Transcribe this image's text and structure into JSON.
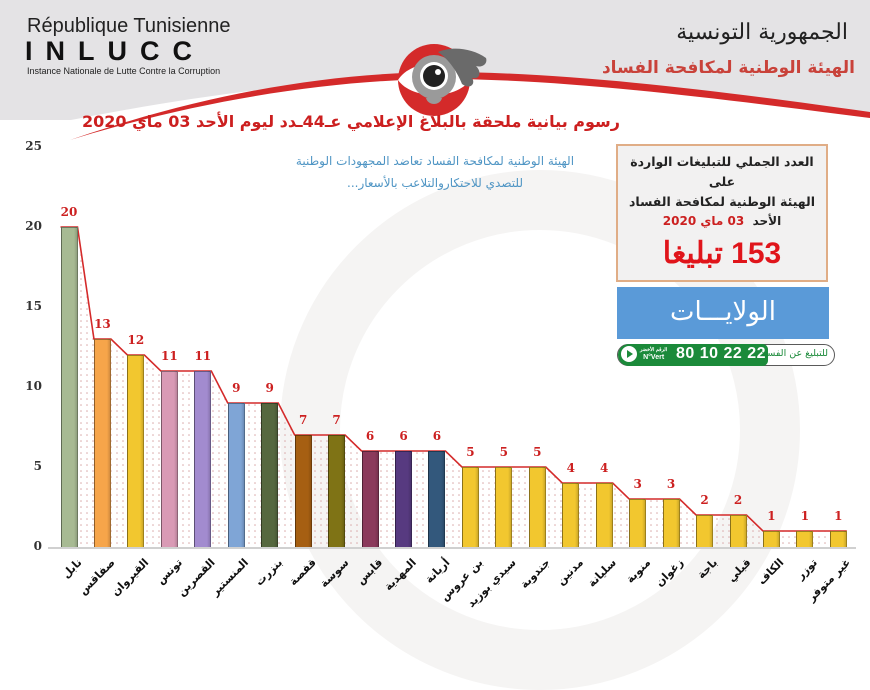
{
  "header": {
    "fr_title": "République Tunisienne",
    "fr_acronym": "INLUCC",
    "fr_subtitle": "Instance Nationale de Lutte Contre la Corruption",
    "ar_republic": "الجمهورية التونسية",
    "ar_authority": "الهيئة الوطنية لمكافحة الفساد",
    "logo_icon": "eye-icon",
    "colors": {
      "header_bg": "#e4e3e5",
      "swoosh_red": "#d42a2a",
      "authority_text": "#c9423a"
    }
  },
  "main_title": "رسوم بيانية ملحقة بالبلاغ الإعلامي عـ44ـدد ليوم الأحد 03 ماي 2020",
  "subtitle": {
    "line1": "الهيئة الوطنية لمكافحة الفساد تعاضد المجهودات الوطنية",
    "line2": "للتصدي للاحتكاروالتلاعب بالأسعار..."
  },
  "total_box": {
    "line1": "العدد الجملي للتبليغات الواردة على",
    "line2": "الهيئة الوطنية لمكافحة الفساد",
    "day": "الأحد",
    "date": "03 ماي 2020",
    "count": "153 تبليغا"
  },
  "regions_banner": "الولايـــات",
  "hotline": {
    "label": "للتبليغ عن الفساد",
    "number": "80 10 22 22",
    "nvert_ar": "الرقم الأخضر",
    "nvert": "N°Vert",
    "play_icon": "play-icon"
  },
  "chart_data": {
    "type": "bar",
    "title": "رسوم بيانية ملحقة بالبلاغ الإعلامي عـ44ـدد ليوم الأحد 03 ماي 2020",
    "xlabel": "الولايات",
    "ylabel": "",
    "ylim": [
      0,
      25
    ],
    "yticks": [
      0,
      5,
      10,
      15,
      20,
      25
    ],
    "grid": false,
    "legend": "none",
    "overlay": "red line connecting bar tops with dotted fill",
    "categories": [
      "نابل",
      "صفاقس",
      "القيروان",
      "تونس",
      "القصرين",
      "المنستير",
      "بنزرت",
      "قفصة",
      "سوسة",
      "قابس",
      "المهدية",
      "أريانة",
      "بن عروس",
      "سيدي بوزيد",
      "جندوبة",
      "مدنين",
      "سليانة",
      "منوبة",
      "زغوان",
      "باجة",
      "قبلي",
      "الكاف",
      "توزر",
      "غير متوفر"
    ],
    "values": [
      20,
      13,
      12,
      11,
      11,
      9,
      9,
      7,
      7,
      6,
      6,
      6,
      5,
      5,
      5,
      4,
      4,
      3,
      3,
      2,
      2,
      1,
      1,
      1
    ],
    "bar_colors": [
      "#a7ba93",
      "#f6a54a",
      "#f2c72f",
      "#d99ab5",
      "#a28bcf",
      "#7fa5d6",
      "#56683f",
      "#a65f12",
      "#7f7315",
      "#8b3a5c",
      "#573a80",
      "#33587c",
      "#f2c72f",
      "#f2c72f",
      "#f2c72f",
      "#f2c72f",
      "#f2c72f",
      "#f2c72f",
      "#f2c72f",
      "#f2c72f",
      "#f2c72f",
      "#f2c72f",
      "#f2c72f",
      "#f2c72f"
    ],
    "line_color": "#d42a2a",
    "label_color": "#cc2020"
  }
}
